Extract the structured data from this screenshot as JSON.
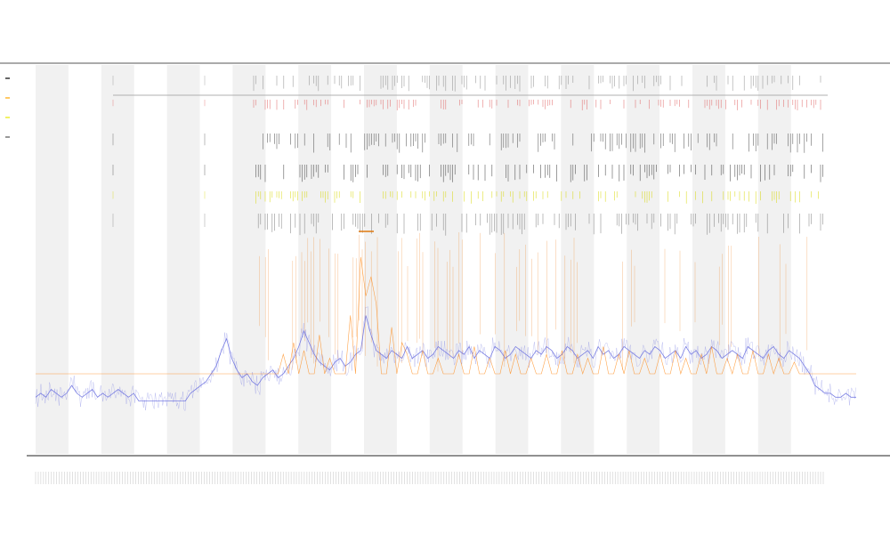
{
  "chart_data": {
    "type": "line",
    "title_lines": [
      "",
      "",
      ""
    ],
    "xlabel": "",
    "ylabel": "",
    "x_tick_count": 300,
    "shaded_bands": 12,
    "series": [
      {
        "color": "#6d72e0",
        "values": [
          0.02,
          0.03,
          0.02,
          0.04,
          0.03,
          0.02,
          0.03,
          0.05,
          0.03,
          0.02,
          0.03,
          0.04,
          0.02,
          0.03,
          0.02,
          0.03,
          0.04,
          0.03,
          0.02,
          0.03,
          0.01,
          0.01,
          0.01,
          0.01,
          0.01,
          0.01,
          0.01,
          0.01,
          0.01,
          0.01,
          0.03,
          0.04,
          0.05,
          0.06,
          0.08,
          0.1,
          0.14,
          0.17,
          0.12,
          0.09,
          0.07,
          0.08,
          0.06,
          0.05,
          0.07,
          0.08,
          0.09,
          0.07,
          0.08,
          0.1,
          0.12,
          0.15,
          0.19,
          0.16,
          0.13,
          0.11,
          0.1,
          0.09,
          0.11,
          0.12,
          0.1,
          0.11,
          0.13,
          0.14,
          0.23,
          0.18,
          0.14,
          0.13,
          0.12,
          0.14,
          0.13,
          0.12,
          0.15,
          0.12,
          0.13,
          0.14,
          0.12,
          0.13,
          0.15,
          0.14,
          0.13,
          0.12,
          0.14,
          0.13,
          0.15,
          0.12,
          0.14,
          0.13,
          0.12,
          0.15,
          0.14,
          0.12,
          0.13,
          0.15,
          0.14,
          0.13,
          0.12,
          0.14,
          0.13,
          0.15,
          0.14,
          0.12,
          0.13,
          0.15,
          0.14,
          0.12,
          0.13,
          0.14,
          0.12,
          0.15,
          0.13,
          0.14,
          0.12,
          0.13,
          0.15,
          0.14,
          0.13,
          0.12,
          0.14,
          0.13,
          0.15,
          0.14,
          0.12,
          0.13,
          0.14,
          0.12,
          0.15,
          0.13,
          0.14,
          0.12,
          0.13,
          0.15,
          0.14,
          0.12,
          0.13,
          0.14,
          0.13,
          0.12,
          0.15,
          0.14,
          0.13,
          0.12,
          0.14,
          0.15,
          0.13,
          0.12,
          0.14,
          0.13,
          0.12,
          0.1,
          0.08,
          0.05,
          0.04,
          0.03,
          0.03,
          0.02,
          0.02,
          0.03,
          0.02,
          0.02
        ]
      },
      {
        "color": "#ff7f00",
        "values": [
          0,
          0,
          0,
          0,
          0,
          0,
          0,
          0,
          0,
          0,
          0,
          0,
          0,
          0,
          0,
          0,
          0,
          0,
          0,
          0,
          0,
          0,
          0,
          0,
          0,
          0,
          0,
          0,
          0,
          0,
          0,
          0,
          0,
          0,
          0,
          0,
          0,
          0,
          0,
          0,
          0,
          0,
          0,
          0,
          0,
          0,
          0,
          0,
          0.05,
          0,
          0.08,
          0,
          0.06,
          0,
          0,
          0.1,
          0,
          0.04,
          0,
          0,
          0,
          0.15,
          0,
          0.3,
          0.2,
          0.25,
          0.18,
          0,
          0,
          0.12,
          0,
          0.08,
          0.05,
          0,
          0,
          0.06,
          0,
          0,
          0.04,
          0,
          0,
          0,
          0.05,
          0,
          0,
          0.07,
          0,
          0,
          0.04,
          0,
          0,
          0.06,
          0,
          0.05,
          0,
          0,
          0.04,
          0,
          0,
          0.05,
          0,
          0,
          0.06,
          0,
          0,
          0.05,
          0,
          0.04,
          0,
          0,
          0.07,
          0,
          0,
          0.05,
          0,
          0.06,
          0,
          0,
          0.04,
          0,
          0,
          0.05,
          0,
          0,
          0.06,
          0,
          0.04,
          0,
          0,
          0.05,
          0,
          0.07,
          0,
          0,
          0.04,
          0,
          0.05,
          0,
          0,
          0.06,
          0,
          0,
          0.05,
          0,
          0.04,
          0,
          0,
          0.03,
          0,
          0,
          0,
          0,
          0,
          0,
          0,
          0,
          0,
          0,
          0,
          0
        ]
      }
    ],
    "legend": [
      {
        "color": "#000000"
      },
      {
        "color": "#ffa500"
      },
      {
        "color": "#e8e800"
      },
      {
        "color": "#555555"
      }
    ]
  }
}
